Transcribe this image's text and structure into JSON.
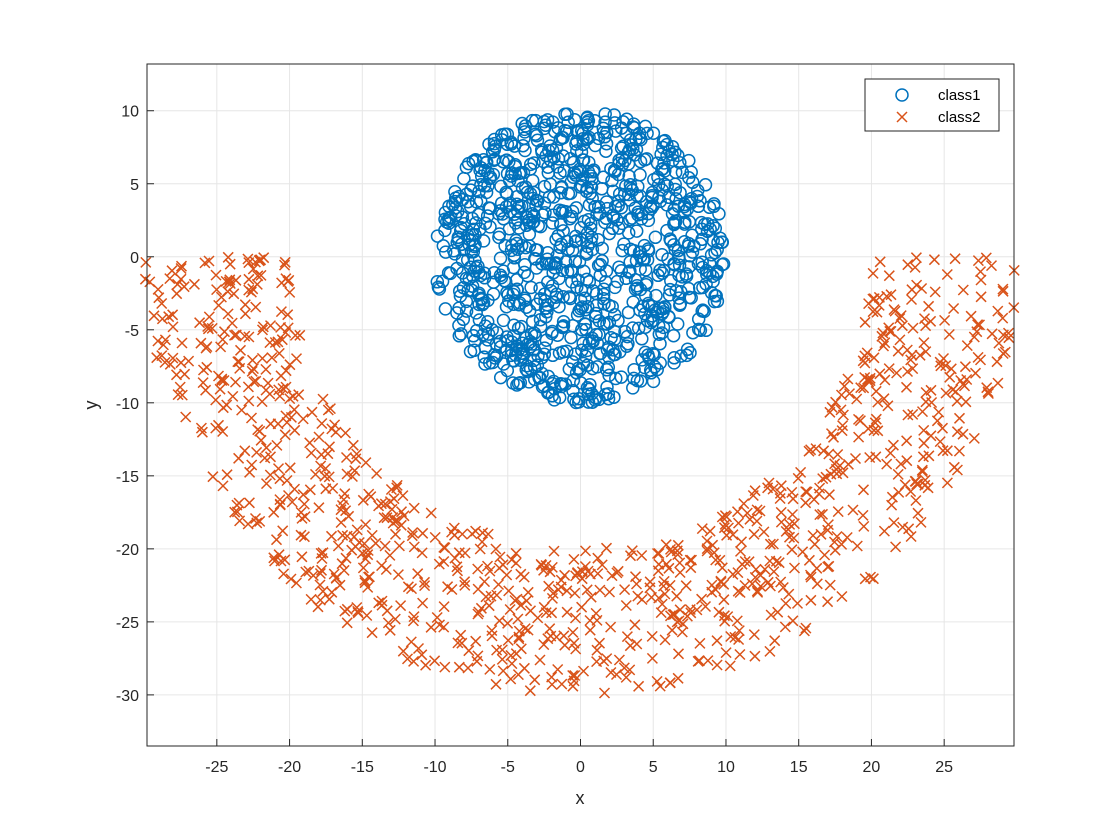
{
  "chart_data": {
    "type": "scatter",
    "title": "",
    "xlabel": "x",
    "ylabel": "y",
    "xlim": [
      -29.8,
      29.8
    ],
    "ylim": [
      -33.5,
      13.2
    ],
    "xticks": [
      -25,
      -20,
      -15,
      -10,
      -5,
      0,
      5,
      10,
      15,
      20,
      25
    ],
    "yticks": [
      -30,
      -25,
      -20,
      -15,
      -10,
      -5,
      0,
      5,
      10
    ],
    "grid": true,
    "legend_position": "top-right",
    "series": [
      {
        "name": "class1",
        "marker": "circle",
        "color": "#0072BD",
        "distribution": "uniform disk",
        "center": [
          0,
          0
        ],
        "radius": 10,
        "count": 1000
      },
      {
        "name": "class2",
        "marker": "x",
        "color": "#D95319",
        "distribution": "half annulus (lower half)",
        "center": [
          0,
          0
        ],
        "inner_radius": 20,
        "outer_radius": 30,
        "count": 1000
      }
    ]
  }
}
